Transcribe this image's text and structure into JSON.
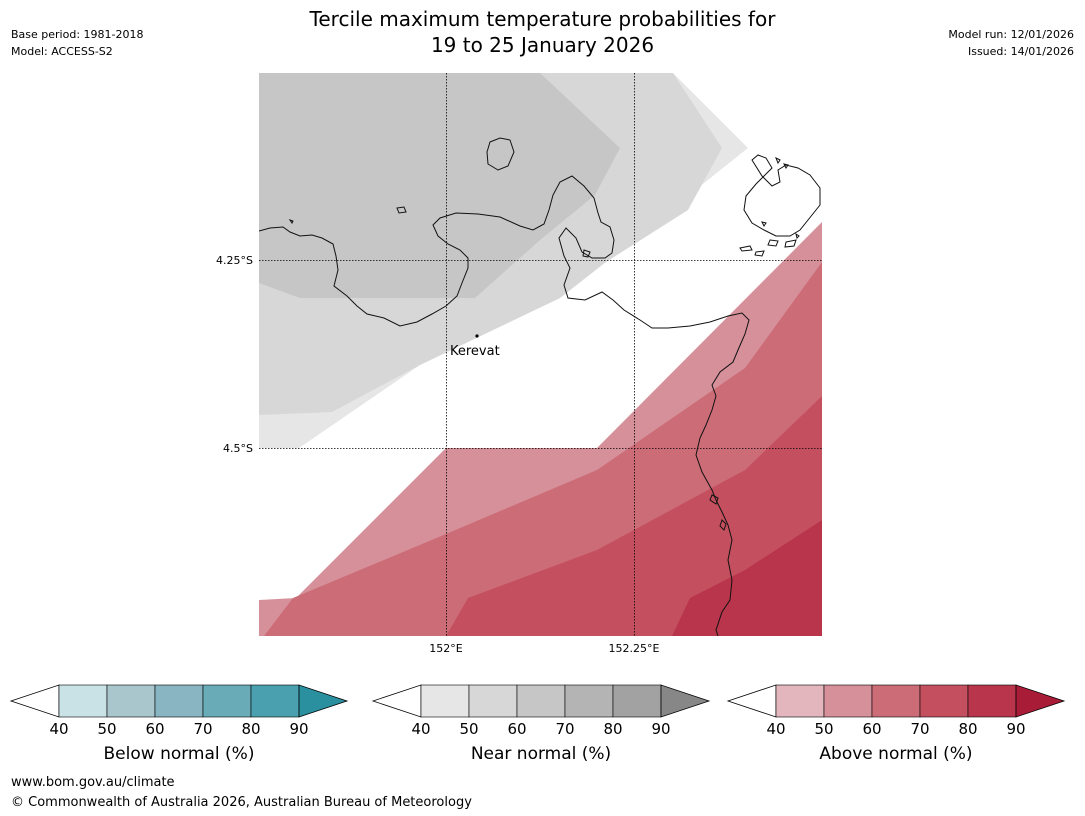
{
  "title": {
    "line1": "Tercile maximum temperature probabilities for",
    "line2": "19 to 25 January 2026"
  },
  "meta_left": {
    "base_period": "Base period: 1981-2018",
    "model": "Model: ACCESS-S2"
  },
  "meta_right": {
    "model_run": "Model run: 12/01/2026",
    "issued": "Issued: 14/01/2026"
  },
  "map": {
    "place_label": "Kerevat",
    "lat_labels": [
      "4.25°S",
      "4.5°S"
    ],
    "lon_labels": [
      "152°E",
      "152.25°E"
    ]
  },
  "colorbars": [
    {
      "name": "below",
      "label": "Below normal (%)",
      "ticks": [
        "40",
        "50",
        "60",
        "70",
        "80",
        "90"
      ],
      "colors": [
        "#ffffff",
        "#c9e2e6",
        "#a8c6cb",
        "#88b5c1",
        "#6aabb8",
        "#4aa0af",
        "#2a8f9f"
      ]
    },
    {
      "name": "near",
      "label": "Near normal (%)",
      "ticks": [
        "40",
        "50",
        "60",
        "70",
        "80",
        "90"
      ],
      "colors": [
        "#ffffff",
        "#e6e6e6",
        "#d7d7d7",
        "#c6c6c6",
        "#b4b4b4",
        "#a2a2a2",
        "#878787"
      ]
    },
    {
      "name": "above",
      "label": "Above normal (%)",
      "ticks": [
        "40",
        "50",
        "60",
        "70",
        "80",
        "90"
      ],
      "colors": [
        "#ffffff",
        "#e2b6bc",
        "#d6909a",
        "#cc6c77",
        "#c4505f",
        "#b9354b",
        "#a81c38"
      ]
    }
  ],
  "footer": {
    "url": "www.bom.gov.au/climate",
    "copyright": "© Commonwealth of Australia 2026, Australian Bureau of Meteorology"
  }
}
